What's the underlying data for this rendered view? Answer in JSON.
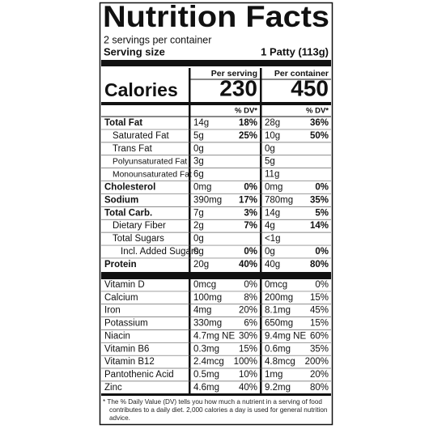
{
  "header": {
    "title": "Nutrition Facts",
    "servings": "2 servings per container",
    "serving_size_label": "Serving size",
    "serving_size": "1 Patty (113g)"
  },
  "calories_label": "Calories",
  "columns": [
    {
      "heading": "Per serving",
      "calories": 230,
      "dv_heading": "% DV*"
    },
    {
      "heading": "Per container",
      "calories": 450,
      "dv_heading": "% DV*"
    }
  ],
  "nutrients": [
    {
      "name": "Total Fat",
      "values": [
        {
          "amount": "14g",
          "dv": "18%"
        },
        {
          "amount": "28g",
          "dv": "36%"
        }
      ]
    },
    {
      "name": "Saturated Fat",
      "values": [
        {
          "amount": "5g",
          "dv": "25%"
        },
        {
          "amount": "10g",
          "dv": "50%"
        }
      ]
    },
    {
      "name": "Trans Fat",
      "values": [
        {
          "amount": "0g"
        },
        {
          "amount": "0g"
        }
      ]
    },
    {
      "name": "Polyunsaturated Fat",
      "values": [
        {
          "amount": "3g"
        },
        {
          "amount": "5g"
        }
      ]
    },
    {
      "name": "Monounsaturated Fat",
      "values": [
        {
          "amount": "6g"
        },
        {
          "amount": "11g"
        }
      ]
    },
    {
      "name": "Cholesterol",
      "values": [
        {
          "amount": "0mg",
          "dv": "0%"
        },
        {
          "amount": "0mg",
          "dv": "0%"
        }
      ]
    },
    {
      "name": "Sodium",
      "values": [
        {
          "amount": "390mg",
          "dv": "17%"
        },
        {
          "amount": "780mg",
          "dv": "35%"
        }
      ]
    },
    {
      "name": "Total Carb.",
      "values": [
        {
          "amount": "7g",
          "dv": "3%"
        },
        {
          "amount": "14g",
          "dv": "5%"
        }
      ]
    },
    {
      "name": "Dietary Fiber",
      "values": [
        {
          "amount": "2g",
          "dv": "7%"
        },
        {
          "amount": "4g",
          "dv": "14%"
        }
      ]
    },
    {
      "name": "Total Sugars",
      "values": [
        {
          "amount": "0g"
        },
        {
          "amount": "<1g"
        }
      ]
    },
    {
      "name": "Incl. Added Sugars",
      "values": [
        {
          "amount": "0g",
          "dv": "0%"
        },
        {
          "amount": "0g",
          "dv": "0%"
        }
      ]
    },
    {
      "name": "Protein",
      "values": [
        {
          "amount": "20g",
          "dv": "40%"
        },
        {
          "amount": "40g",
          "dv": "80%"
        }
      ]
    }
  ],
  "vitamins": [
    {
      "name": "Vitamin D",
      "values": [
        {
          "amount": "0mcg",
          "dv": "0%"
        },
        {
          "amount": "0mcg",
          "dv": "0%"
        }
      ]
    },
    {
      "name": "Calcium",
      "values": [
        {
          "amount": "100mg",
          "dv": "8%"
        },
        {
          "amount": "200mg",
          "dv": "15%"
        }
      ]
    },
    {
      "name": "Iron",
      "values": [
        {
          "amount": "4mg",
          "dv": "20%"
        },
        {
          "amount": "8.1mg",
          "dv": "45%"
        }
      ]
    },
    {
      "name": "Potassium",
      "values": [
        {
          "amount": "330mg",
          "dv": "6%"
        },
        {
          "amount": "650mg",
          "dv": "15%"
        }
      ]
    },
    {
      "name": "Niacin",
      "values": [
        {
          "amount": "4.7mg NE",
          "dv": "30%"
        },
        {
          "amount": "9.4mg NE",
          "dv": "60%"
        }
      ]
    },
    {
      "name": "Vitamin B6",
      "values": [
        {
          "amount": "0.3mg",
          "dv": "15%"
        },
        {
          "amount": "0.6mg",
          "dv": "35%"
        }
      ]
    },
    {
      "name": "Vitamin B12",
      "values": [
        {
          "amount": "2.4mcg",
          "dv": "100%"
        },
        {
          "amount": "4.8mcg",
          "dv": "200%"
        }
      ]
    },
    {
      "name": "Pantothenic Acid",
      "values": [
        {
          "amount": "0.5mg",
          "dv": "10%"
        },
        {
          "amount": "1mg",
          "dv": "20%"
        }
      ]
    },
    {
      "name": "Zinc",
      "values": [
        {
          "amount": "4.6mg",
          "dv": "40%"
        },
        {
          "amount": "9.2mg",
          "dv": "80%"
        }
      ]
    }
  ],
  "footnote": "* The % Daily Value (DV) tells you how much a nutrient in a serving of food contributes to a daily diet. 2,000 calories a day is used for general nutrition advice."
}
